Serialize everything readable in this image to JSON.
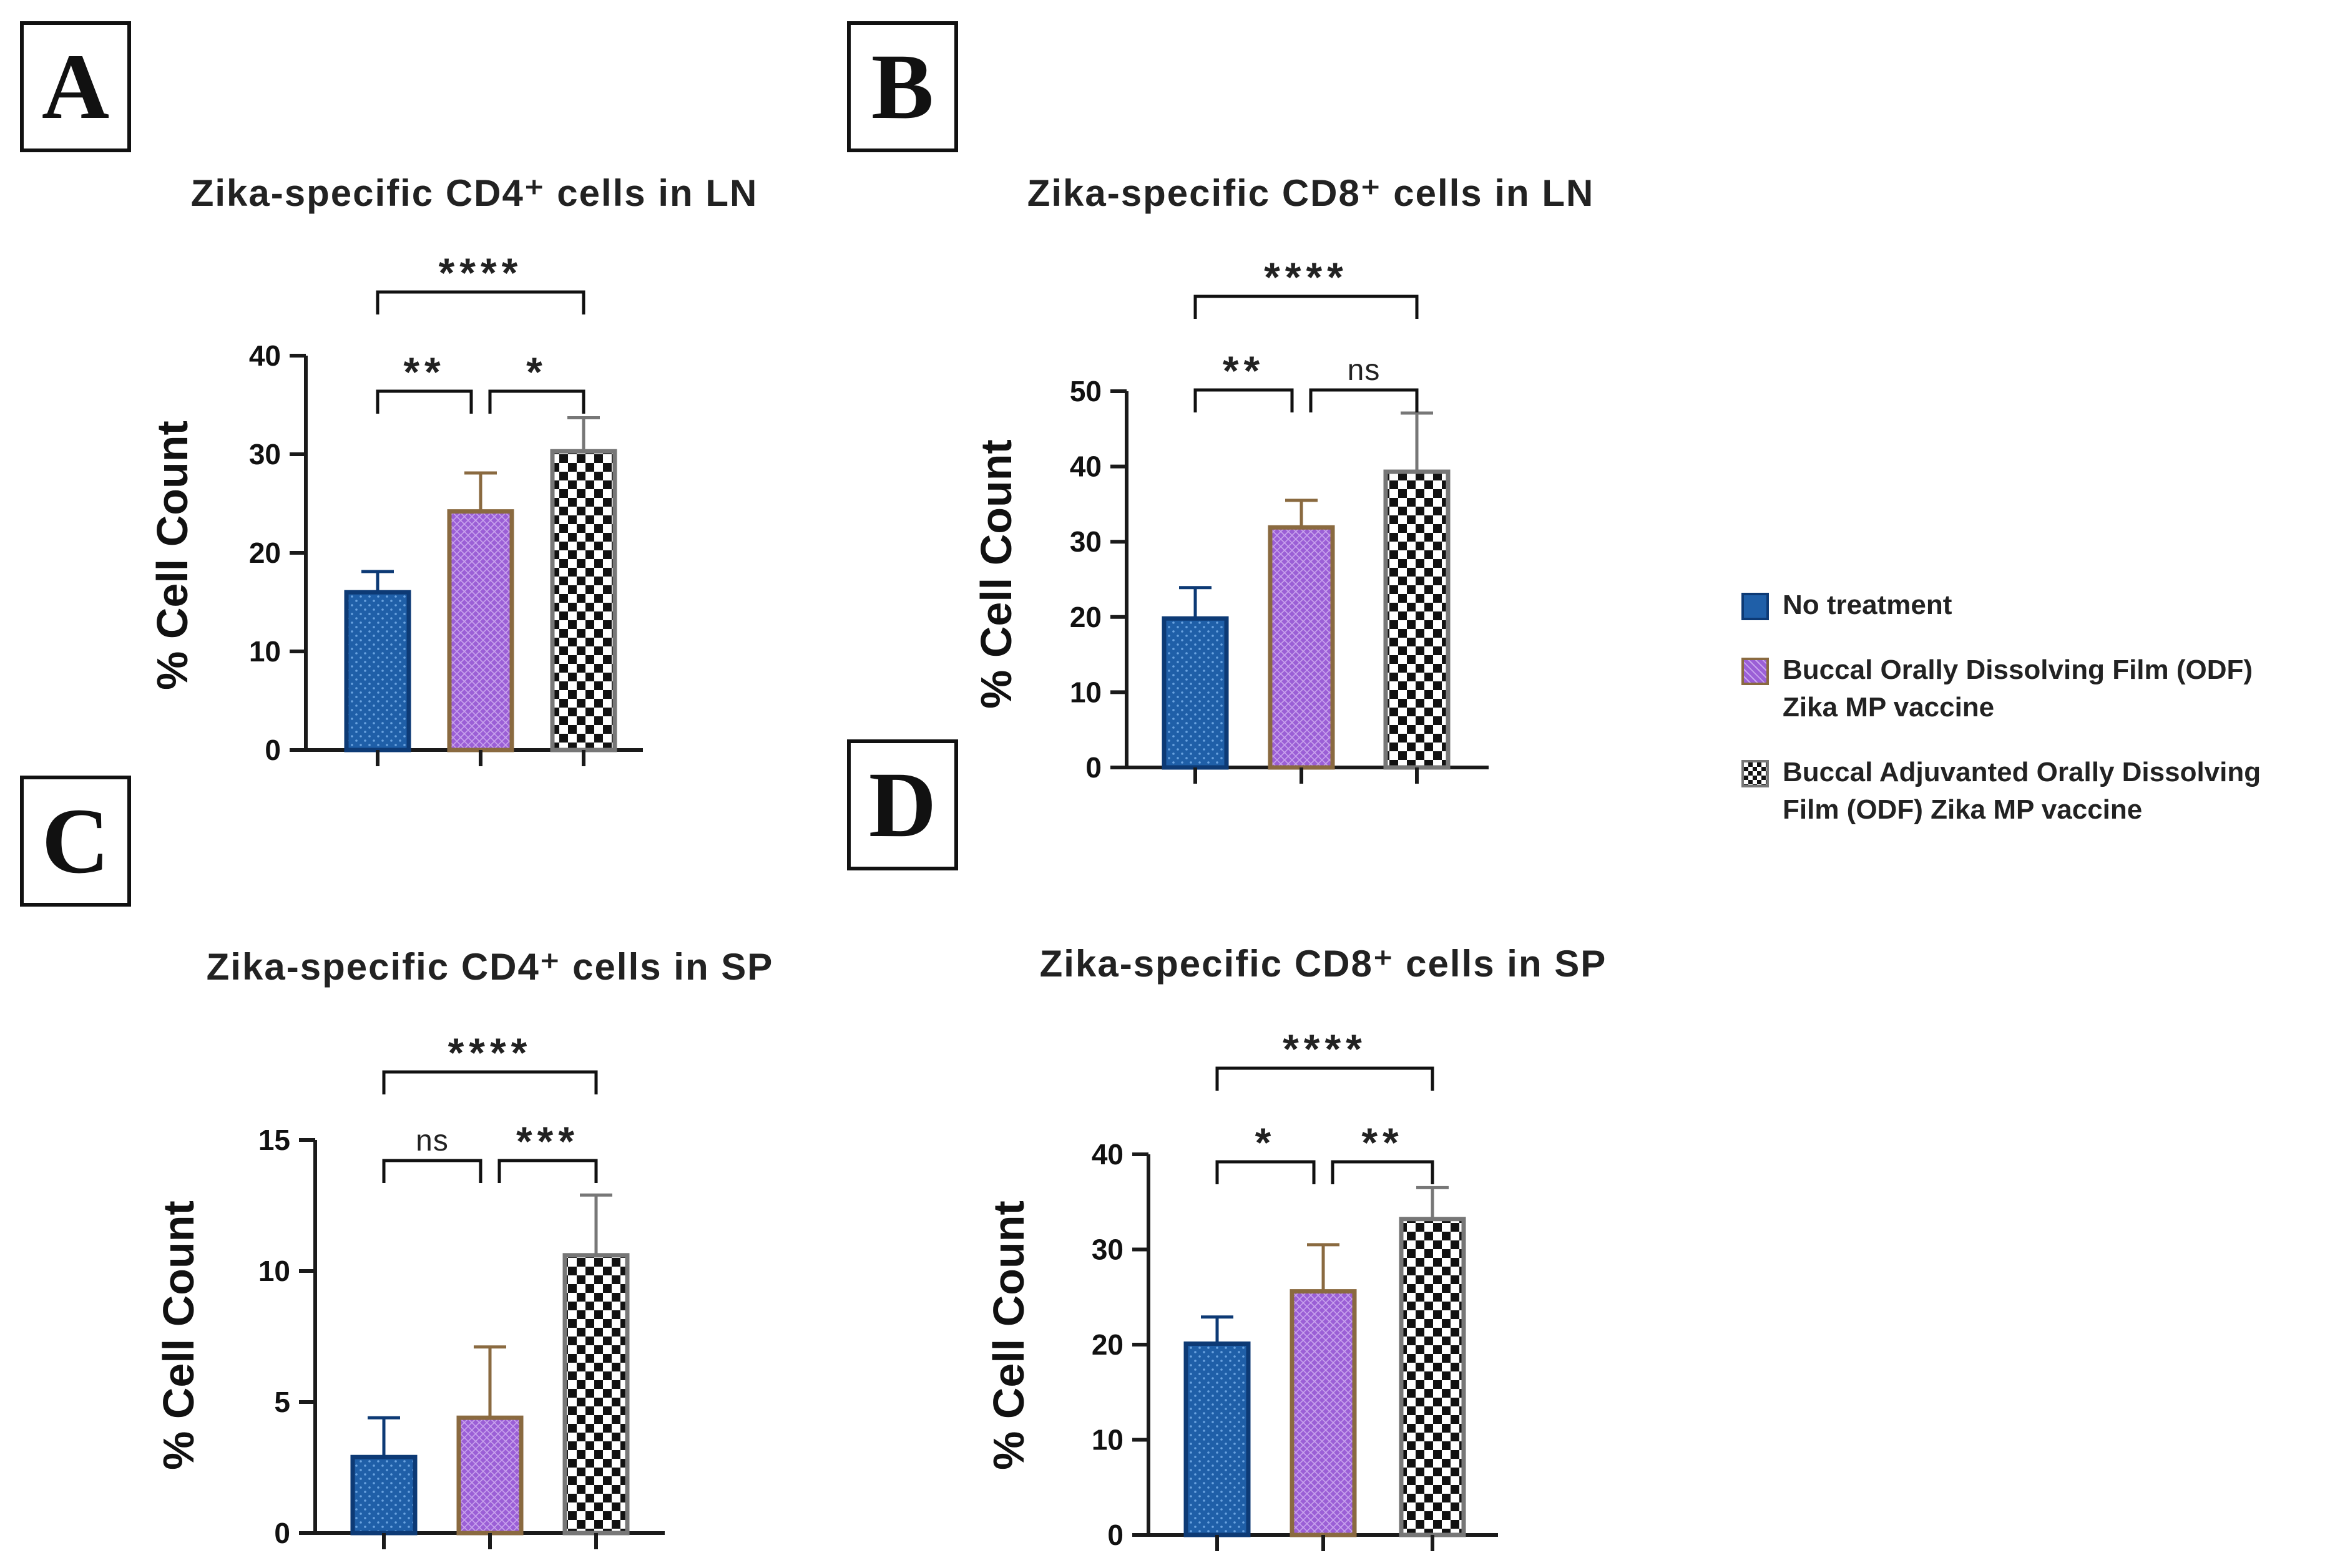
{
  "panels": [
    {
      "id": "A",
      "label": "A"
    },
    {
      "id": "B",
      "label": "B"
    },
    {
      "id": "C",
      "label": "C"
    },
    {
      "id": "D",
      "label": "D"
    }
  ],
  "legend": [
    {
      "label": "No treatment",
      "style": "blue-dots"
    },
    {
      "label": "Buccal Orally Dissolving Film (ODF) Zika MP vaccine",
      "style": "purple-mesh"
    },
    {
      "label": "Buccal Adjuvanted Orally Dissolving Film (ODF) Zika MP vaccine",
      "style": "checker"
    }
  ],
  "colors": {
    "blue": "#1f5fa8",
    "blue_border": "#0d3a75",
    "purple": "#9b5fd6",
    "purple_border": "#8a6a40",
    "checker_border": "#777777",
    "axis": "#1a1a1a"
  },
  "chart_data": [
    {
      "type": "bar",
      "panel": "A",
      "title": "Zika-specific CD4⁺ cells in LN",
      "ylabel": "% Cell Count",
      "ylim": [
        0,
        40
      ],
      "yticks": [
        0,
        10,
        20,
        30,
        40
      ],
      "categories": [
        "No treatment",
        "Buccal ODF Zika MP vaccine",
        "Buccal Adjuvanted ODF Zika MP vaccine"
      ],
      "values": [
        16,
        24.2,
        30.3
      ],
      "errors": [
        2.1,
        3.9,
        3.4
      ],
      "comparisons": [
        {
          "from": 0,
          "to": 1,
          "label": "**"
        },
        {
          "from": 1,
          "to": 2,
          "label": "*"
        },
        {
          "from": 0,
          "to": 2,
          "label": "****"
        }
      ]
    },
    {
      "type": "bar",
      "panel": "B",
      "title": "Zika-specific CD8⁺ cells in LN",
      "ylabel": "% Cell Count",
      "ylim": [
        0,
        50
      ],
      "yticks": [
        0,
        10,
        20,
        30,
        40,
        50
      ],
      "categories": [
        "No treatment",
        "Buccal ODF Zika MP vaccine",
        "Buccal Adjuvanted ODF Zika MP vaccine"
      ],
      "values": [
        19.8,
        31.9,
        39.3
      ],
      "errors": [
        4.1,
        3.6,
        7.8
      ],
      "comparisons": [
        {
          "from": 0,
          "to": 1,
          "label": "**"
        },
        {
          "from": 1,
          "to": 2,
          "label": "ns"
        },
        {
          "from": 0,
          "to": 2,
          "label": "****"
        }
      ]
    },
    {
      "type": "bar",
      "panel": "C",
      "title": "Zika-specific CD4⁺ cells in SP",
      "ylabel": "% Cell Count",
      "ylim": [
        0,
        15
      ],
      "yticks": [
        0,
        5,
        10,
        15
      ],
      "categories": [
        "No treatment",
        "Buccal ODF Zika MP vaccine",
        "Buccal Adjuvanted ODF Zika MP vaccine"
      ],
      "values": [
        2.9,
        4.4,
        10.6
      ],
      "errors": [
        1.5,
        2.7,
        2.3
      ],
      "comparisons": [
        {
          "from": 0,
          "to": 1,
          "label": "ns"
        },
        {
          "from": 1,
          "to": 2,
          "label": "***"
        },
        {
          "from": 0,
          "to": 2,
          "label": "****"
        }
      ]
    },
    {
      "type": "bar",
      "panel": "D",
      "title": "Zika-specific CD8⁺ cells in SP",
      "ylabel": "% Cell Count",
      "ylim": [
        0,
        40
      ],
      "yticks": [
        0,
        10,
        20,
        30,
        40
      ],
      "categories": [
        "No treatment",
        "Buccal ODF Zika MP vaccine",
        "Buccal Adjuvanted ODF Zika MP vaccine"
      ],
      "values": [
        20.1,
        25.6,
        33.2
      ],
      "errors": [
        2.8,
        4.9,
        3.3
      ],
      "comparisons": [
        {
          "from": 0,
          "to": 1,
          "label": "*"
        },
        {
          "from": 1,
          "to": 2,
          "label": "**"
        },
        {
          "from": 0,
          "to": 2,
          "label": "****"
        }
      ]
    }
  ]
}
